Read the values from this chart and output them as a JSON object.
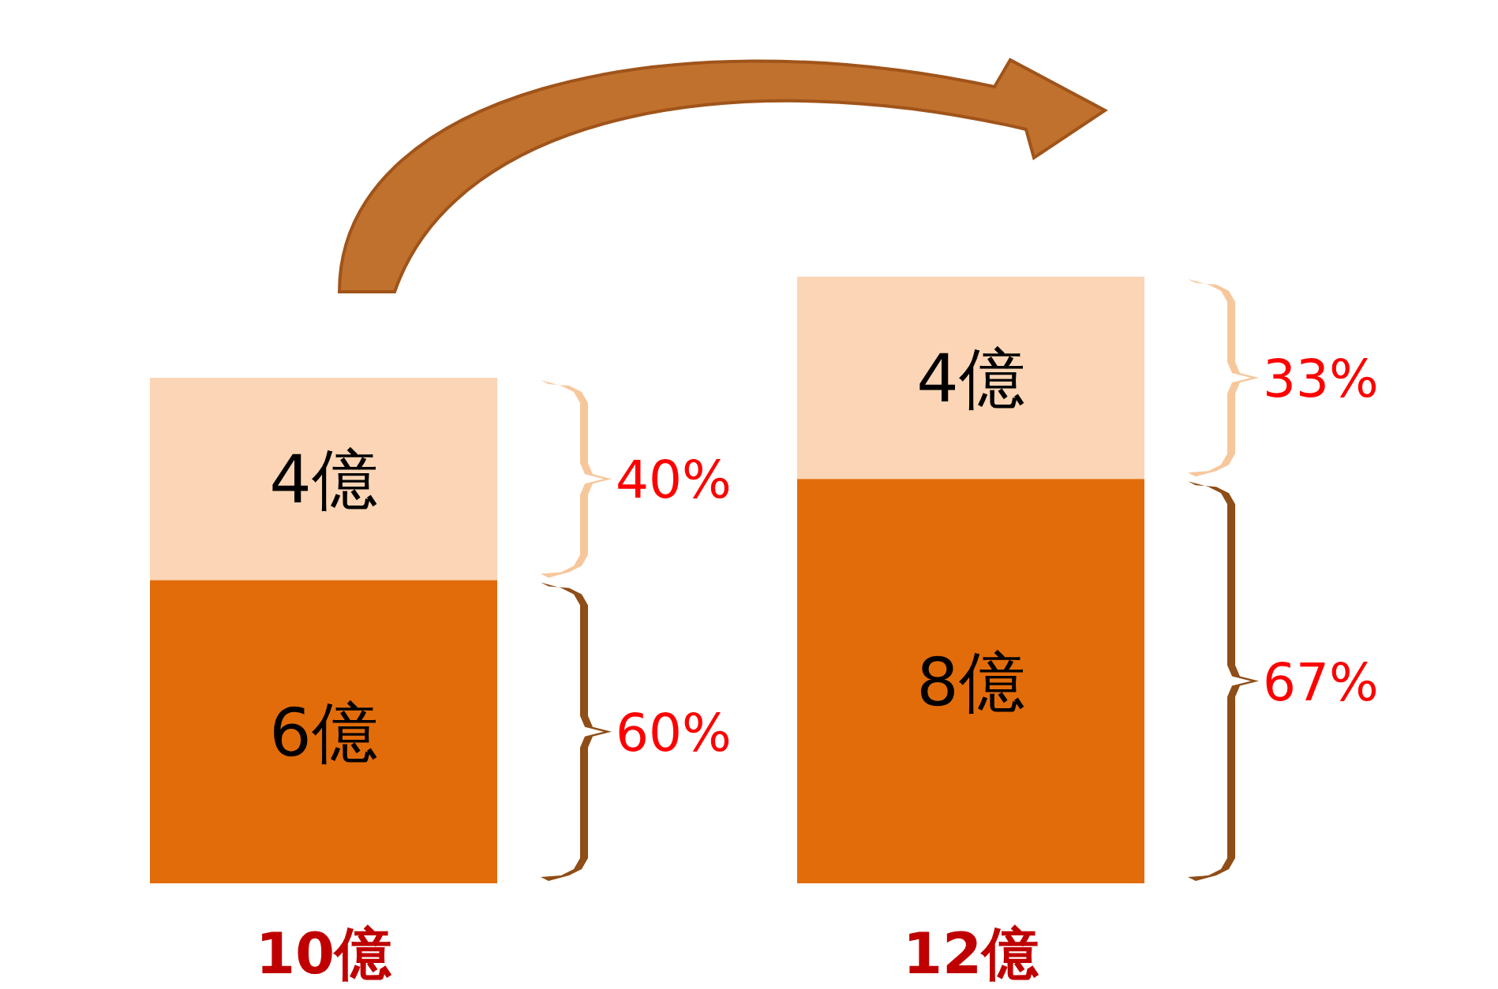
{
  "chart_data": {
    "type": "bar",
    "stacked": true,
    "categories": [
      "10億",
      "12億"
    ],
    "series": [
      {
        "color": "#e36c0a",
        "values": [
          6,
          8
        ],
        "value_labels": [
          "6億",
          "8億"
        ]
      },
      {
        "color": "#fbd5b5",
        "values": [
          4,
          4
        ],
        "value_labels": [
          "4億",
          "4億"
        ]
      }
    ],
    "annotations": [
      "60%",
      "67%",
      "40%",
      "33%"
    ]
  }
}
